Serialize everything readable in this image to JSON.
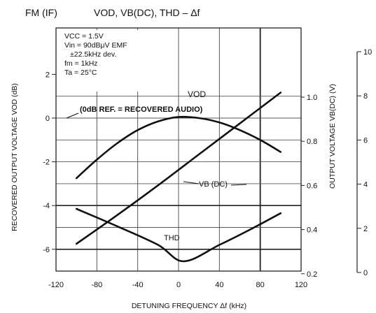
{
  "chart_data": {
    "type": "line",
    "header": {
      "mode": "FM (IF)",
      "title": "VOD, VB(DC), THD – Δf"
    },
    "xlabel": "DETUNING FREQUENCY  Δf  (kHz)",
    "ylabel_left": "RECOVERED OUTPUT VOLTAGE  VOD  (dB)",
    "ylabel_mid": "OUTPUT VOLTAGE  VB(DC)  (V)",
    "xlim": [
      -120,
      120
    ],
    "x_ticks": [
      "-120",
      "-80",
      "-40",
      "0",
      "40",
      "80",
      "120"
    ],
    "x_tick_values": [
      -120,
      -80,
      -40,
      0,
      40,
      80,
      120
    ],
    "ylim_left": [
      -7,
      2
    ],
    "y_left_ticks": [
      "2",
      "0",
      "-2",
      "-4",
      "-6"
    ],
    "y_left_tick_values": [
      2,
      0,
      -2,
      -4,
      -6
    ],
    "y_mid_ticks": [
      "1.0",
      "0.8",
      "0.6",
      "0.4",
      "0.2"
    ],
    "y_mid_tick_values": [
      1.0,
      0.8,
      0.6,
      0.4,
      0.2
    ],
    "y_right_ticks": [
      "10",
      "8",
      "6",
      "4",
      "2",
      "0"
    ],
    "y_right_tick_values": [
      10,
      8,
      6,
      4,
      2,
      0
    ],
    "conditions": [
      "VCC = 1.5V",
      "Vin = 90dBμV EMF",
      "±22.5kHz dev.",
      "fm = 1kHz",
      "Ta = 25°C"
    ],
    "annotation": "(0dB REF. = RECOVERED AUDIO)",
    "series": [
      {
        "name": "VOD",
        "axis": "left",
        "x": [
          -100,
          -80,
          -60,
          -40,
          -20,
          0,
          20,
          40,
          60,
          80,
          100
        ],
        "y": [
          -2.75,
          -1.9,
          -1.15,
          -0.55,
          -0.15,
          0.05,
          0.0,
          -0.2,
          -0.55,
          -1.0,
          -1.55
        ]
      },
      {
        "name": "VB (DC)",
        "axis": "right",
        "x": [
          -100,
          -60,
          -20,
          20,
          60,
          100
        ],
        "y": [
          1.3,
          2.6,
          3.95,
          5.35,
          6.75,
          8.15
        ]
      },
      {
        "name": "THD",
        "axis": "left",
        "x": [
          -100,
          -60,
          -20,
          5,
          40,
          70,
          100
        ],
        "y": [
          -4.15,
          -4.95,
          -5.8,
          -6.55,
          -5.8,
          -5.1,
          -4.35
        ]
      }
    ],
    "grid": true
  }
}
